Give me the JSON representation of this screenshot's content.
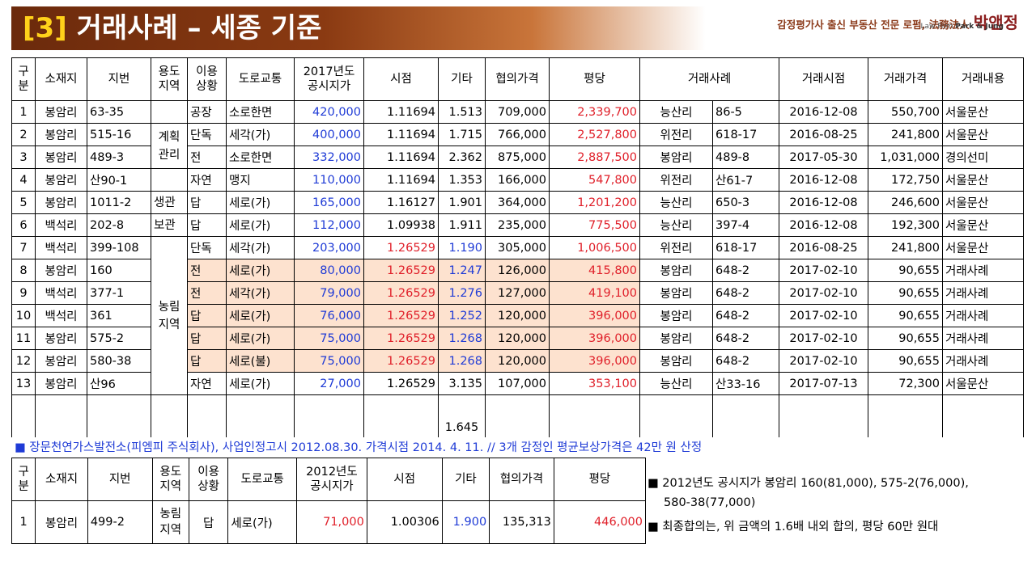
{
  "title": {
    "number": "[3]",
    "text": "거래사례 – 세종 기준"
  },
  "brand": {
    "tagline": "감정평가사 출신 부동산 전문 로펌, 法務法人",
    "name": "박앤정",
    "sub_prefix": "Law Firm",
    "sub_name": "Park & Jung"
  },
  "table1": {
    "headers": {
      "gubun": "구\n분",
      "location": "소재지",
      "lot": "지번",
      "zoning": "용도\n지역",
      "use": "이용\n상황",
      "road": "도로교통",
      "price": "2017년도\n공시지가",
      "time": "시점",
      "etc": "기타",
      "agreed": "협의가격",
      "per_pyeong": "평당",
      "case": "거래사례",
      "case_date": "거래시점",
      "case_price": "거래가격",
      "case_detail": "거래내용"
    },
    "zones": {
      "plan": "계획\n관리",
      "saeng": "생관",
      "bo": "보관",
      "nongrim": "농림\n지역"
    },
    "rows": [
      {
        "no": "1",
        "loc": "봉암리",
        "lot": "63-35",
        "use": "공장",
        "road": "소로한면",
        "price": "420,000",
        "time": "1.11694",
        "etc": "1.513",
        "agreed": "709,000",
        "pp": "2,339,700",
        "c_loc": "능산리",
        "c_lot": "86-5",
        "c_date": "2016-12-08",
        "c_price": "550,700",
        "c_detail": "서울문산"
      },
      {
        "no": "2",
        "loc": "봉암리",
        "lot": "515-16",
        "use": "단독",
        "road": "세각(가)",
        "price": "400,000",
        "time": "1.11694",
        "etc": "1.715",
        "agreed": "766,000",
        "pp": "2,527,800",
        "c_loc": "위전리",
        "c_lot": "618-17",
        "c_date": "2016-08-25",
        "c_price": "241,800",
        "c_detail": "서울문산"
      },
      {
        "no": "3",
        "loc": "봉암리",
        "lot": "489-3",
        "use": "전",
        "road": "소로한면",
        "price": "332,000",
        "time": "1.11694",
        "etc": "2.362",
        "agreed": "875,000",
        "pp": "2,887,500",
        "c_loc": "봉암리",
        "c_lot": "489-8",
        "c_date": "2017-05-30",
        "c_price": "1,031,000",
        "c_detail": "경의선미"
      },
      {
        "no": "4",
        "loc": "봉암리",
        "lot": "산90-1",
        "use": "자연",
        "road": "맹지",
        "price": "110,000",
        "time": "1.11694",
        "etc": "1.353",
        "agreed": "166,000",
        "pp": "547,800",
        "c_loc": "위전리",
        "c_lot": "산61-7",
        "c_date": "2016-12-08",
        "c_price": "172,750",
        "c_detail": "서울문산"
      },
      {
        "no": "5",
        "loc": "봉암리",
        "lot": "1011-2",
        "use": "답",
        "road": "세로(가)",
        "price": "165,000",
        "time": "1.16127",
        "etc": "1.901",
        "agreed": "364,000",
        "pp": "1,201,200",
        "c_loc": "능산리",
        "c_lot": "650-3",
        "c_date": "2016-12-08",
        "c_price": "246,600",
        "c_detail": "서울문산"
      },
      {
        "no": "6",
        "loc": "백석리",
        "lot": "202-8",
        "use": "답",
        "road": "세로(가)",
        "price": "112,000",
        "time": "1.09938",
        "etc": "1.911",
        "agreed": "235,000",
        "pp": "775,500",
        "c_loc": "능산리",
        "c_lot": "397-4",
        "c_date": "2016-12-08",
        "c_price": "192,300",
        "c_detail": "서울문산"
      },
      {
        "no": "7",
        "loc": "백석리",
        "lot": "399-108",
        "use": "단독",
        "road": "세각(가)",
        "price": "203,000",
        "time": "1.26529",
        "etc": "1.190",
        "agreed": "305,000",
        "pp": "1,006,500",
        "c_loc": "위전리",
        "c_lot": "618-17",
        "c_date": "2016-08-25",
        "c_price": "241,800",
        "c_detail": "서울문산"
      },
      {
        "no": "8",
        "loc": "봉암리",
        "lot": "160",
        "use": "전",
        "road": "세로(가)",
        "price": "80,000",
        "time": "1.26529",
        "etc": "1.247",
        "agreed": "126,000",
        "pp": "415,800",
        "c_loc": "봉암리",
        "c_lot": "648-2",
        "c_date": "2017-02-10",
        "c_price": "90,655",
        "c_detail": "거래사례"
      },
      {
        "no": "9",
        "loc": "백석리",
        "lot": "377-1",
        "use": "전",
        "road": "세각(가)",
        "price": "79,000",
        "time": "1.26529",
        "etc": "1.276",
        "agreed": "127,000",
        "pp": "419,100",
        "c_loc": "봉암리",
        "c_lot": "648-2",
        "c_date": "2017-02-10",
        "c_price": "90,655",
        "c_detail": "거래사례"
      },
      {
        "no": "10",
        "loc": "백석리",
        "lot": "361",
        "use": "답",
        "road": "세로(가)",
        "price": "76,000",
        "time": "1.26529",
        "etc": "1.252",
        "agreed": "120,000",
        "pp": "396,000",
        "c_loc": "봉암리",
        "c_lot": "648-2",
        "c_date": "2017-02-10",
        "c_price": "90,655",
        "c_detail": "거래사례"
      },
      {
        "no": "11",
        "loc": "봉암리",
        "lot": "575-2",
        "use": "답",
        "road": "세로(가)",
        "price": "75,000",
        "time": "1.26529",
        "etc": "1.268",
        "agreed": "120,000",
        "pp": "396,000",
        "c_loc": "봉암리",
        "c_lot": "648-2",
        "c_date": "2017-02-10",
        "c_price": "90,655",
        "c_detail": "거래사례"
      },
      {
        "no": "12",
        "loc": "봉암리",
        "lot": "580-38",
        "use": "답",
        "road": "세로(불)",
        "price": "75,000",
        "time": "1.26529",
        "etc": "1.268",
        "agreed": "120,000",
        "pp": "396,000",
        "c_loc": "봉암리",
        "c_lot": "648-2",
        "c_date": "2017-02-10",
        "c_price": "90,655",
        "c_detail": "거래사례"
      },
      {
        "no": "13",
        "loc": "봉암리",
        "lot": "산96",
        "use": "자연",
        "road": "세로(가)",
        "price": "27,000",
        "time": "1.26529",
        "etc": "3.135",
        "agreed": "107,000",
        "pp": "353,100",
        "c_loc": "능산리",
        "c_lot": "산33-16",
        "c_date": "2017-07-13",
        "c_price": "72,300",
        "c_detail": "서울문산"
      }
    ],
    "etc_average": "1.645"
  },
  "notice": "■ 장문천연가스발전소(피엠피 주식회사), 사업인정고시 2012.08.30. 가격시점 2014. 4. 11. // 3개 감정인 평균보상가격은 42만 원 산정",
  "table2": {
    "headers": {
      "gubun": "구\n분",
      "location": "소재지",
      "lot": "지번",
      "zoning": "용도\n지역",
      "use": "이용\n상황",
      "road": "도로교통",
      "price": "2012년도\n공시지가",
      "time": "시점",
      "etc": "기타",
      "agreed": "협의가격",
      "per_pyeong": "평당"
    },
    "row": {
      "no": "1",
      "loc": "봉암리",
      "lot": "499-2",
      "zoning": "농림\n지역",
      "use": "답",
      "road": "세로(가)",
      "price": "71,000",
      "time": "1.00306",
      "etc": "1.900",
      "agreed": "135,313",
      "pp": "446,000"
    }
  },
  "notes": [
    "■ 2012년도 공시지가 봉암리 160(81,000), 575-2(76,000),",
    "  580-38(77,000)",
    "■ 최종합의는, 위 금액의 1.6배 내외 합의, 평당 60만 원대"
  ],
  "colors": {
    "title_bg": "#6b2a0c",
    "title_number": "#ffd21a",
    "blue_text": "#1f3bd6",
    "red_text": "#e0202a",
    "highlight": "#fde2cf"
  }
}
